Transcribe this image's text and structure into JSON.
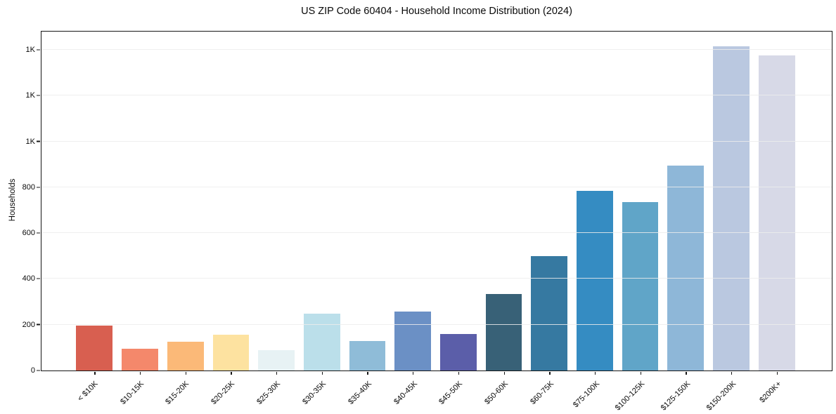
{
  "chart_data": {
    "type": "bar",
    "title": "US ZIP Code 60404 - Household Income Distribution (2024)",
    "xlabel": "",
    "ylabel": "Households",
    "categories": [
      "< $10K",
      "$10-15K",
      "$15-20K",
      "$20-25K",
      "$25-30K",
      "$30-35K",
      "$35-40K",
      "$40-45K",
      "$45-50K",
      "$50-60K",
      "$60-75K",
      "$75-100K",
      "$100-125K",
      "$125-150K",
      "$150-200K",
      "$200K+"
    ],
    "values": [
      195,
      95,
      125,
      155,
      90,
      248,
      130,
      258,
      158,
      335,
      500,
      785,
      735,
      895,
      1415,
      1375
    ],
    "bar_colors": [
      "#d85f50",
      "#f4886b",
      "#fbb978",
      "#fde2a0",
      "#e7f2f4",
      "#bbdfea",
      "#8fbcd8",
      "#6b90c5",
      "#5b5ea9",
      "#386177",
      "#3679a1",
      "#358cc2",
      "#60a5c8",
      "#8eb7d8",
      "#bac8e0",
      "#d7d9e7"
    ],
    "ylim": [
      0,
      1480
    ],
    "ytick_values": [
      0,
      200,
      400,
      600,
      800,
      1000,
      1200,
      1400
    ],
    "ytick_labels": [
      "0",
      "200",
      "400",
      "600",
      "800",
      "1K",
      "1K",
      "1K"
    ],
    "grid": "horizontal-only",
    "gridline_color": "#ededed",
    "x_tick_label_rotation_deg": 45,
    "legend": "none"
  }
}
